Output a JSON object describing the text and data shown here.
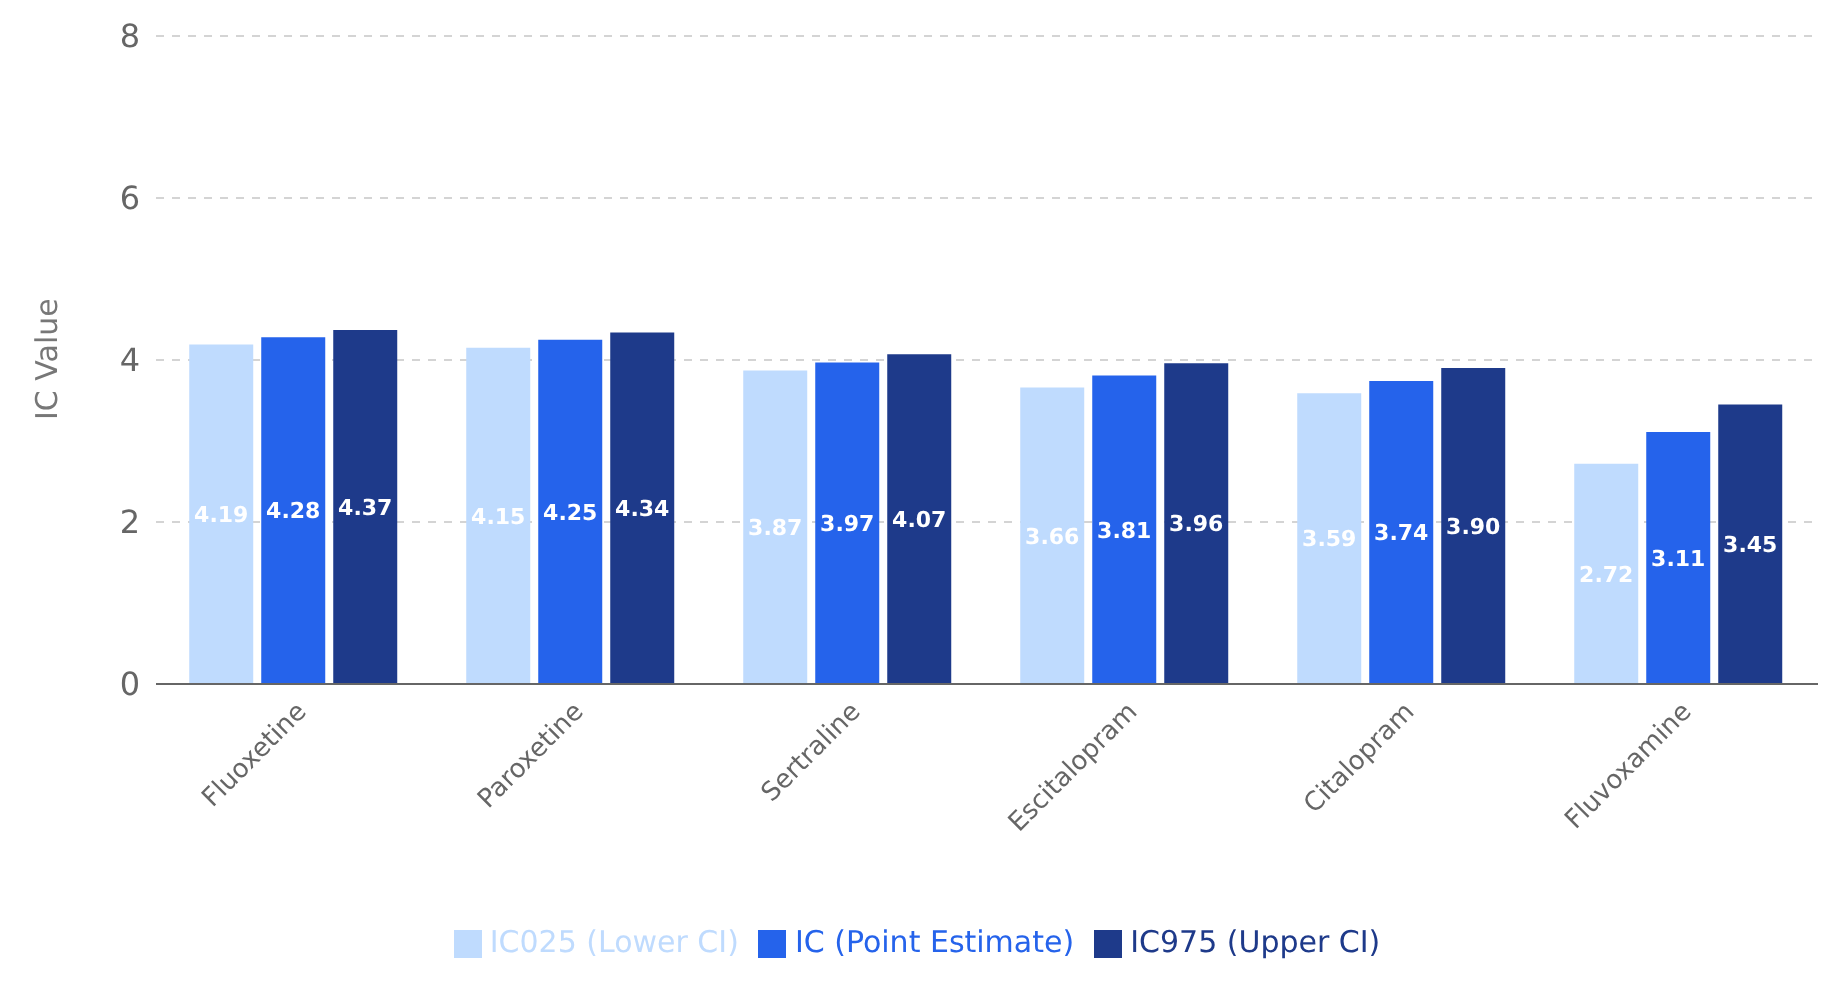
{
  "chart_data": {
    "type": "bar",
    "ylabel": "IC Value",
    "categories": [
      "Fluoxetine",
      "Paroxetine",
      "Sertraline",
      "Escitalopram",
      "Citalopram",
      "Fluvoxamine"
    ],
    "series": [
      {
        "name": "IC025 (Lower CI)",
        "color": "#bfdbfe",
        "values": [
          4.19,
          4.15,
          3.87,
          3.66,
          3.59,
          2.72
        ],
        "value_labels": [
          "4.19",
          "4.15",
          "3.87",
          "3.66",
          "3.59",
          "2.72"
        ]
      },
      {
        "name": "IC (Point Estimate)",
        "color": "#2563eb",
        "values": [
          4.28,
          4.25,
          3.97,
          3.81,
          3.74,
          3.11
        ],
        "value_labels": [
          "4.28",
          "4.25",
          "3.97",
          "3.81",
          "3.74",
          "3.11"
        ]
      },
      {
        "name": "IC975 (Upper CI)",
        "color": "#1e3a8a",
        "values": [
          4.37,
          4.34,
          4.07,
          3.96,
          3.9,
          3.45
        ],
        "value_labels": [
          "4.37",
          "4.34",
          "4.07",
          "3.96",
          "3.90",
          "3.45"
        ]
      }
    ],
    "ylim": [
      0,
      8
    ],
    "yticks": [
      0,
      2,
      4,
      6,
      8
    ],
    "grid": "y",
    "legend": "bottom"
  }
}
